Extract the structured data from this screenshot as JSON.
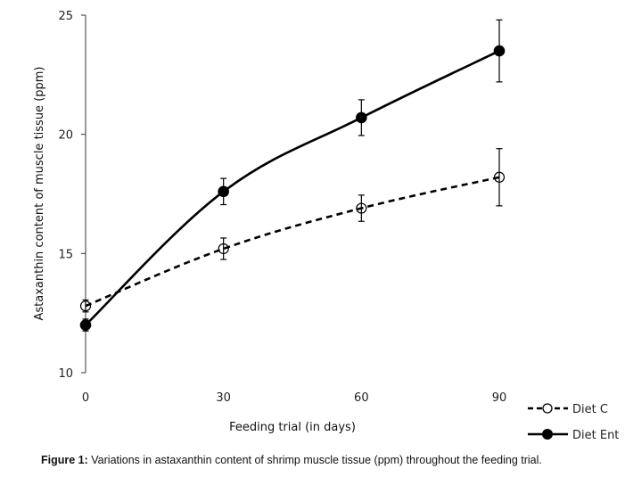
{
  "chart_data": {
    "type": "line",
    "title": "",
    "xlabel": "Feeding trial (in days)",
    "ylabel": "Astaxanthin content of muscle tissue (ppm)",
    "x": [
      0,
      30,
      60,
      90
    ],
    "xticks": [
      "0",
      "30",
      "60",
      "90"
    ],
    "yticks": [
      "10",
      "15",
      "20",
      "25"
    ],
    "ylim": [
      10,
      25
    ],
    "grid": false,
    "legend_position": "bottom-right",
    "series": [
      {
        "name": "Diet C",
        "values": [
          12.8,
          15.2,
          16.9,
          18.2
        ],
        "errors": [
          0.25,
          0.45,
          0.55,
          1.2
        ],
        "style": "dashed",
        "marker": "open-circle"
      },
      {
        "name": "Diet Ent",
        "values": [
          12.0,
          17.6,
          20.7,
          23.5
        ],
        "errors": [
          0.25,
          0.55,
          0.75,
          1.3
        ],
        "style": "solid",
        "marker": "filled-circle"
      }
    ]
  },
  "caption": {
    "label": "Figure 1:",
    "text": " Variations in astaxanthin content of shrimp muscle tissue (ppm) throughout the feeding trial."
  }
}
